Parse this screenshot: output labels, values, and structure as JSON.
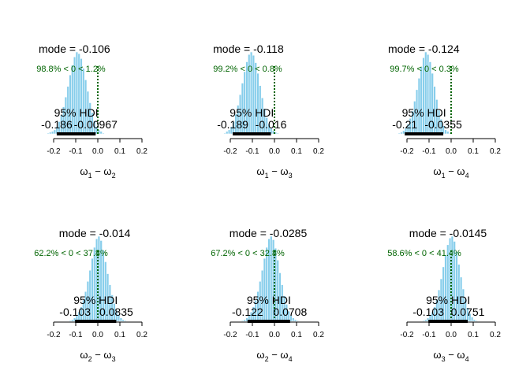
{
  "axis": {
    "xlim": [
      -0.2,
      0.2
    ],
    "ticks": [
      -0.2,
      -0.1,
      0,
      0.1,
      0.2
    ],
    "tick_labels": [
      "-0.2",
      "-0.1",
      "0.0",
      "0.1",
      "0.2"
    ]
  },
  "colors": {
    "bar_fill": "#87ceeb",
    "bar_edge": "#ffffff",
    "hdi_bar": "#000000",
    "comp_text": "#006400",
    "comp_line": "#006400",
    "text": "#000000"
  },
  "chart_data": [
    {
      "type": "bar",
      "xlabel": "ω1 − ω2",
      "mode_text": "mode = -0.106",
      "mode": -0.106,
      "comp_text": "98.8% < 0 < 1.2%",
      "comp_value": 0,
      "hdi_label": "95% HDI",
      "hdi": [
        -0.186,
        -0.00967
      ],
      "hdi_low_text": "-0.186",
      "hdi_high_text": "-0.00967",
      "bins": {
        "start": -0.23,
        "width": 0.01,
        "counts": [
          1,
          2,
          3,
          5,
          9,
          15,
          23,
          33,
          45,
          58,
          72,
          84,
          94,
          100,
          98,
          92,
          80,
          66,
          52,
          38,
          26,
          16,
          9,
          5,
          3,
          1
        ]
      }
    },
    {
      "type": "bar",
      "xlabel": "ω1 − ω3",
      "mode_text": "mode = -0.118",
      "mode": -0.118,
      "comp_text": "99.2% < 0 < 0.8%",
      "comp_value": 0,
      "hdi_label": "95% HDI",
      "hdi": [
        -0.189,
        -0.016
      ],
      "hdi_low_text": "-0.189",
      "hdi_high_text": "-0.016",
      "bins": {
        "start": -0.23,
        "width": 0.01,
        "counts": [
          1,
          3,
          5,
          9,
          15,
          24,
          35,
          48,
          62,
          76,
          88,
          97,
          100,
          96,
          87,
          74,
          59,
          44,
          31,
          20,
          12,
          7,
          4,
          2,
          1
        ]
      }
    },
    {
      "type": "bar",
      "xlabel": "ω1 − ω4",
      "mode_text": "mode = -0.124",
      "mode": -0.124,
      "comp_text": "99.7% < 0 < 0.3%",
      "comp_value": 0,
      "hdi_label": "95% HDI",
      "hdi": [
        -0.21,
        -0.0355
      ],
      "hdi_low_text": "-0.21",
      "hdi_high_text": "-0.0355",
      "bins": {
        "start": -0.24,
        "width": 0.01,
        "counts": [
          1,
          2,
          4,
          7,
          12,
          19,
          28,
          40,
          54,
          68,
          82,
          93,
          100,
          97,
          88,
          74,
          58,
          42,
          29,
          18,
          10,
          5,
          3,
          1
        ]
      }
    },
    {
      "type": "bar",
      "xlabel": "ω2 − ω3",
      "mode_text": "mode = -0.014",
      "mode": -0.014,
      "comp_text": "62.2% < 0 < 37.8%",
      "comp_value": 0,
      "hdi_label": "95% HDI",
      "hdi": [
        -0.103,
        0.0835
      ],
      "hdi_low_text": "-0.103",
      "hdi_high_text": "0.0835",
      "bins": {
        "start": -0.13,
        "width": 0.01,
        "counts": [
          1,
          2,
          4,
          7,
          11,
          17,
          25,
          35,
          47,
          60,
          74,
          87,
          97,
          100,
          95,
          84,
          70,
          56,
          43,
          31,
          21,
          13,
          8,
          4,
          2,
          1
        ]
      }
    },
    {
      "type": "bar",
      "xlabel": "ω2 − ω4",
      "mode_text": "mode = -0.0285",
      "mode": -0.0285,
      "comp_text": "67.2% < 0 < 32.8%",
      "comp_value": 0,
      "hdi_label": "95% HDI",
      "hdi": [
        -0.122,
        0.0708
      ],
      "hdi_low_text": "-0.122",
      "hdi_high_text": "0.0708",
      "bins": {
        "start": -0.15,
        "width": 0.01,
        "counts": [
          1,
          2,
          4,
          7,
          11,
          17,
          25,
          35,
          47,
          60,
          74,
          87,
          97,
          100,
          96,
          86,
          72,
          57,
          43,
          30,
          20,
          12,
          7,
          4,
          2,
          1
        ]
      }
    },
    {
      "type": "bar",
      "xlabel": "ω3 − ω4",
      "mode_text": "mode = -0.0145",
      "mode": -0.0145,
      "comp_text": "58.6% < 0 < 41.4%",
      "comp_value": 0,
      "hdi_label": "95% HDI",
      "hdi": [
        -0.103,
        0.0751
      ],
      "hdi_low_text": "-0.103",
      "hdi_high_text": "0.0751",
      "bins": {
        "start": -0.13,
        "width": 0.01,
        "counts": [
          1,
          2,
          4,
          7,
          11,
          17,
          26,
          37,
          50,
          64,
          78,
          90,
          98,
          100,
          94,
          82,
          67,
          52,
          38,
          26,
          16,
          9,
          5,
          2,
          1
        ]
      }
    }
  ]
}
